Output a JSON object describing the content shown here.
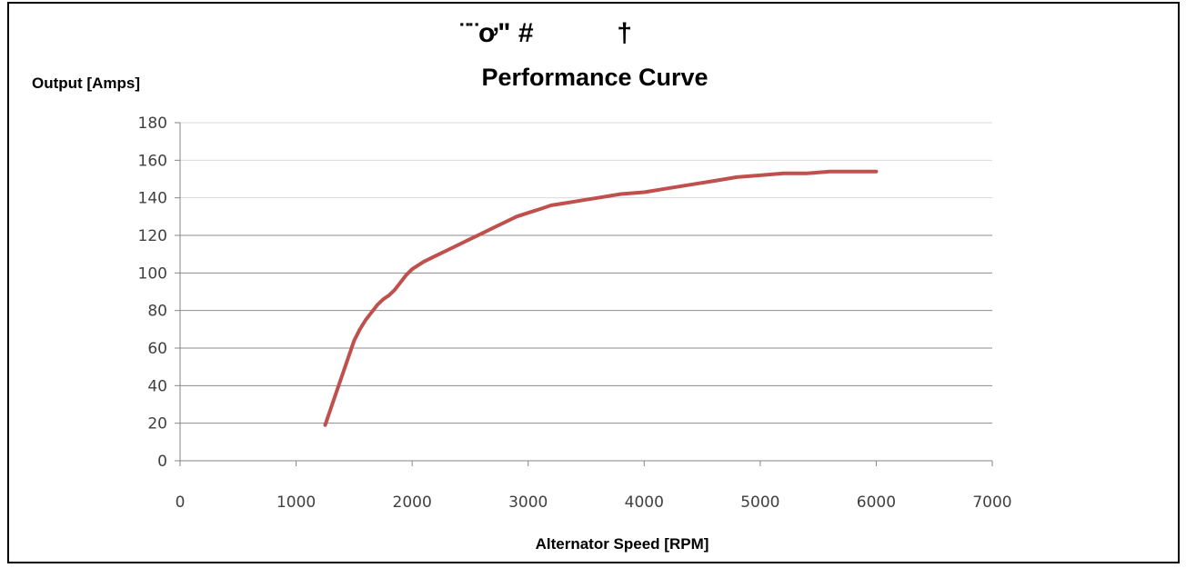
{
  "chart_data": {
    "type": "line",
    "title_glyphs": "¨¨ơ\" #           †",
    "title": "Performance Curve",
    "ylabel": "Output [Amps]",
    "xlabel": "Alternator Speed [RPM]",
    "xlim": [
      0,
      7000
    ],
    "ylim": [
      0,
      180
    ],
    "x_ticks": [
      0,
      1000,
      2000,
      3000,
      4000,
      5000,
      6000,
      7000
    ],
    "y_ticks": [
      0,
      20,
      40,
      60,
      80,
      100,
      120,
      140,
      160,
      180
    ],
    "grid": true,
    "legend": "none",
    "series": [
      {
        "color": "#c0504d",
        "x": [
          1250,
          1350,
          1450,
          1500,
          1550,
          1600,
          1650,
          1700,
          1750,
          1800,
          1850,
          1900,
          1950,
          2000,
          2100,
          2200,
          2300,
          2400,
          2500,
          2600,
          2700,
          2800,
          2900,
          3000,
          3100,
          3200,
          3300,
          3400,
          3500,
          3600,
          3800,
          4000,
          4200,
          4400,
          4600,
          4800,
          5000,
          5200,
          5400,
          5600,
          5800,
          6000
        ],
        "y": [
          19,
          37,
          55,
          64,
          70,
          75,
          79,
          83,
          86,
          88,
          91,
          95,
          99,
          102,
          106,
          109,
          112,
          115,
          118,
          121,
          124,
          127,
          130,
          132,
          134,
          136,
          137,
          138,
          139,
          140,
          142,
          143,
          145,
          147,
          149,
          151,
          152,
          153,
          153,
          154,
          154,
          154
        ]
      }
    ]
  }
}
